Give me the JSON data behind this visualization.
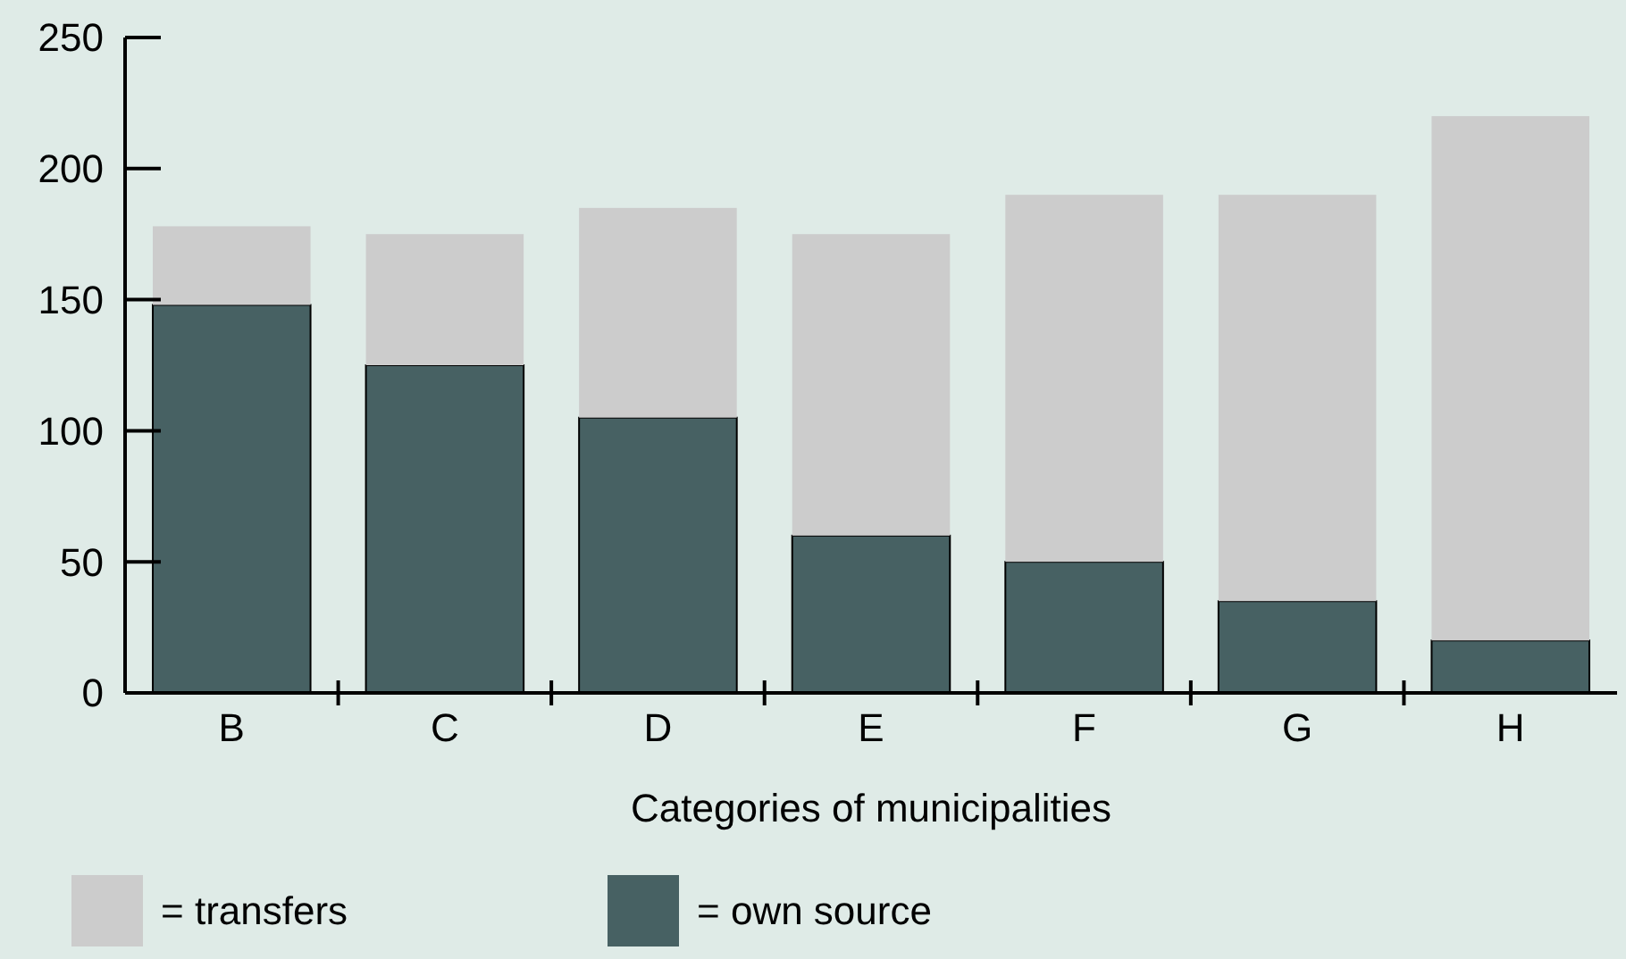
{
  "chart_data": {
    "type": "bar",
    "stacked": true,
    "xlabel": "Categories of municipalities",
    "categories": [
      "B",
      "C",
      "D",
      "E",
      "F",
      "G",
      "H"
    ],
    "series": [
      {
        "name": "= own source",
        "color": "#476163",
        "values": [
          148,
          125,
          105,
          60,
          50,
          35,
          20
        ]
      },
      {
        "name": "= transfers",
        "color": "#cccccc",
        "values": [
          30,
          50,
          80,
          115,
          140,
          155,
          200
        ]
      }
    ],
    "ylim": [
      0,
      250
    ],
    "yticks": [
      0,
      50,
      100,
      150,
      200,
      250
    ],
    "grid": false,
    "legend": "bottom"
  }
}
